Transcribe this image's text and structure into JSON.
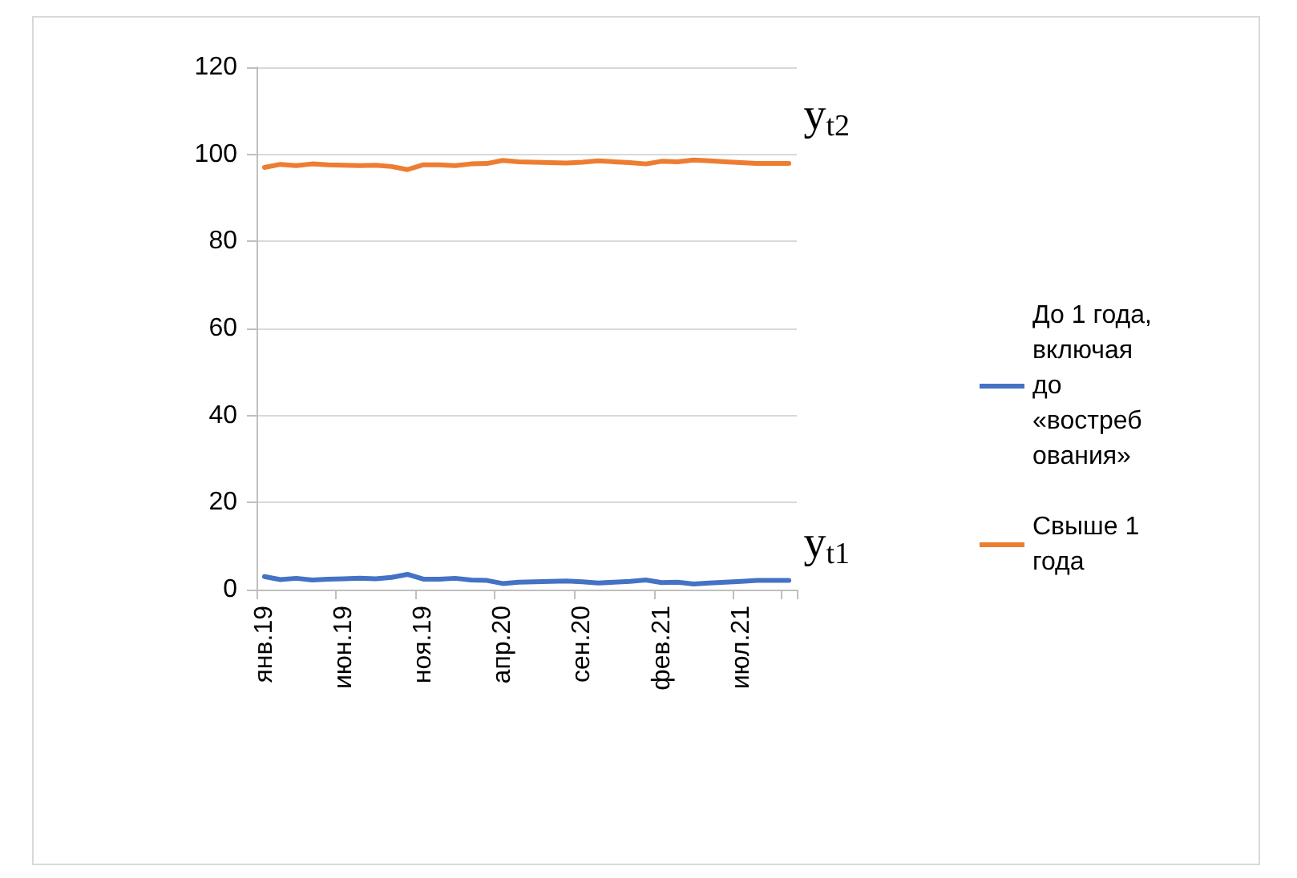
{
  "chart_data": {
    "type": "line",
    "categories": [
      "янв.19",
      null,
      null,
      null,
      null,
      "июн.19",
      null,
      null,
      null,
      null,
      "ноя.19",
      null,
      null,
      null,
      null,
      "апр.20",
      null,
      null,
      null,
      null,
      "сен.20",
      null,
      null,
      null,
      null,
      "фев.21",
      null,
      null,
      null,
      null,
      "июл.21",
      null,
      null,
      null
    ],
    "series": [
      {
        "name": "До 1 года, включая до «востребования»",
        "color": "#4472c4",
        "values": [
          3.0,
          2.3,
          2.6,
          2.2,
          2.4,
          2.5,
          2.6,
          2.5,
          2.8,
          3.5,
          2.4,
          2.4,
          2.6,
          2.2,
          2.1,
          1.4,
          1.7,
          1.8,
          1.9,
          2.0,
          1.8,
          1.5,
          1.7,
          1.9,
          2.2,
          1.6,
          1.7,
          1.3,
          1.5,
          1.7,
          1.9,
          2.1,
          2.1,
          2.1
        ]
      },
      {
        "name": "Свыше 1 года",
        "color": "#ed7d31",
        "values": [
          97.0,
          97.7,
          97.4,
          97.8,
          97.6,
          97.5,
          97.4,
          97.5,
          97.2,
          96.5,
          97.6,
          97.6,
          97.4,
          97.8,
          97.9,
          98.6,
          98.3,
          98.2,
          98.1,
          98.0,
          98.2,
          98.5,
          98.3,
          98.1,
          97.8,
          98.4,
          98.3,
          98.7,
          98.5,
          98.3,
          98.1,
          97.9,
          97.9,
          97.9
        ]
      }
    ],
    "ylim": [
      0,
      120
    ],
    "yticks": [
      0,
      20,
      40,
      60,
      80,
      100,
      120
    ],
    "grid": "y",
    "legend": "right",
    "marker": "none",
    "line_style": "solid",
    "annotations": [
      "y$_{t2}$",
      "y$_{t1}$"
    ]
  }
}
